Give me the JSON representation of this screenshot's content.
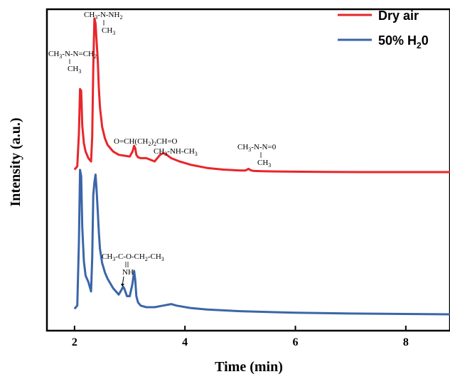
{
  "chart_data": {
    "type": "line",
    "xlabel": "Time (min)",
    "ylabel": "Intensity (a.u.)",
    "xlim": [
      1.5,
      8.8
    ],
    "xticks": [
      2,
      4,
      6,
      8
    ],
    "y_ticks_shown": false,
    "grid": false,
    "legend_position": "top-right",
    "series": [
      {
        "name": "Dry air",
        "color": "#e8262b",
        "x": [
          2.0,
          2.05,
          2.08,
          2.1,
          2.12,
          2.14,
          2.17,
          2.2,
          2.25,
          2.3,
          2.32,
          2.34,
          2.36,
          2.38,
          2.4,
          2.42,
          2.44,
          2.46,
          2.5,
          2.55,
          2.6,
          2.7,
          2.8,
          2.9,
          3.0,
          3.05,
          3.08,
          3.1,
          3.12,
          3.15,
          3.2,
          3.3,
          3.45,
          3.55,
          3.6,
          3.65,
          3.75,
          3.9,
          4.1,
          4.4,
          4.7,
          5.0,
          5.1,
          5.15,
          5.2,
          5.25,
          5.4,
          5.8,
          6.5,
          7.5,
          8.8
        ],
        "y": [
          0.08,
          0.1,
          0.3,
          0.57,
          0.56,
          0.35,
          0.24,
          0.19,
          0.15,
          0.13,
          0.28,
          0.7,
          1.0,
          0.97,
          0.86,
          0.75,
          0.58,
          0.46,
          0.34,
          0.27,
          0.23,
          0.19,
          0.17,
          0.165,
          0.16,
          0.19,
          0.225,
          0.21,
          0.17,
          0.155,
          0.15,
          0.15,
          0.13,
          0.17,
          0.18,
          0.175,
          0.15,
          0.13,
          0.11,
          0.09,
          0.08,
          0.075,
          0.075,
          0.085,
          0.075,
          0.072,
          0.07,
          0.068,
          0.066,
          0.065,
          0.065
        ]
      },
      {
        "name": "50% H20",
        "color": "#3b65a8",
        "x": [
          2.0,
          2.05,
          2.08,
          2.1,
          2.12,
          2.14,
          2.17,
          2.2,
          2.25,
          2.3,
          2.32,
          2.34,
          2.36,
          2.38,
          2.4,
          2.42,
          2.44,
          2.46,
          2.5,
          2.55,
          2.6,
          2.7,
          2.8,
          2.85,
          2.88,
          2.9,
          2.95,
          3.0,
          3.05,
          3.08,
          3.1,
          3.12,
          3.15,
          3.2,
          3.3,
          3.45,
          3.6,
          3.75,
          3.85,
          4.1,
          4.4,
          5.0,
          6.0,
          7.0,
          8.8
        ],
        "y": [
          0.08,
          0.1,
          0.5,
          0.96,
          0.92,
          0.6,
          0.38,
          0.29,
          0.25,
          0.19,
          0.4,
          0.8,
          0.88,
          0.93,
          0.83,
          0.7,
          0.57,
          0.46,
          0.37,
          0.31,
          0.27,
          0.21,
          0.17,
          0.2,
          0.22,
          0.21,
          0.16,
          0.16,
          0.24,
          0.32,
          0.26,
          0.16,
          0.12,
          0.1,
          0.09,
          0.09,
          0.1,
          0.11,
          0.1,
          0.085,
          0.075,
          0.065,
          0.055,
          0.05,
          0.045
        ]
      }
    ],
    "annotations": [
      {
        "id": "mma",
        "pre": "CH",
        "sub1": "3",
        "mid": "-N-NH",
        "sub2": "2",
        "post": "",
        "branch": "CH",
        "branch_sub": "3"
      },
      {
        "id": "fdh",
        "pre": "CH",
        "sub1": "3",
        "mid": "-N-N=CH",
        "sub2": "2",
        "post": "",
        "branch": "CH",
        "branch_sub": "3"
      },
      {
        "id": "glut",
        "pre": "O=CH(CH",
        "sub1": "2",
        "mid": ")",
        "sub2": "2",
        "post": "CH=O"
      },
      {
        "id": "dma",
        "pre": "CH",
        "sub1": "3",
        "mid": "-NH-CH",
        "sub2": "3",
        "post": ""
      },
      {
        "id": "ndma",
        "pre": "CH",
        "sub1": "3",
        "mid": "-N-N=0",
        "sub2": "",
        "post": "",
        "branch": "CH",
        "branch_sub": "3"
      },
      {
        "id": "ester",
        "pre": "CH",
        "sub1": "3",
        "mid": "-C-O-CH",
        "sub2": "2",
        "post": "-CH",
        "post_sub": "3",
        "branch": "NH"
      }
    ]
  }
}
